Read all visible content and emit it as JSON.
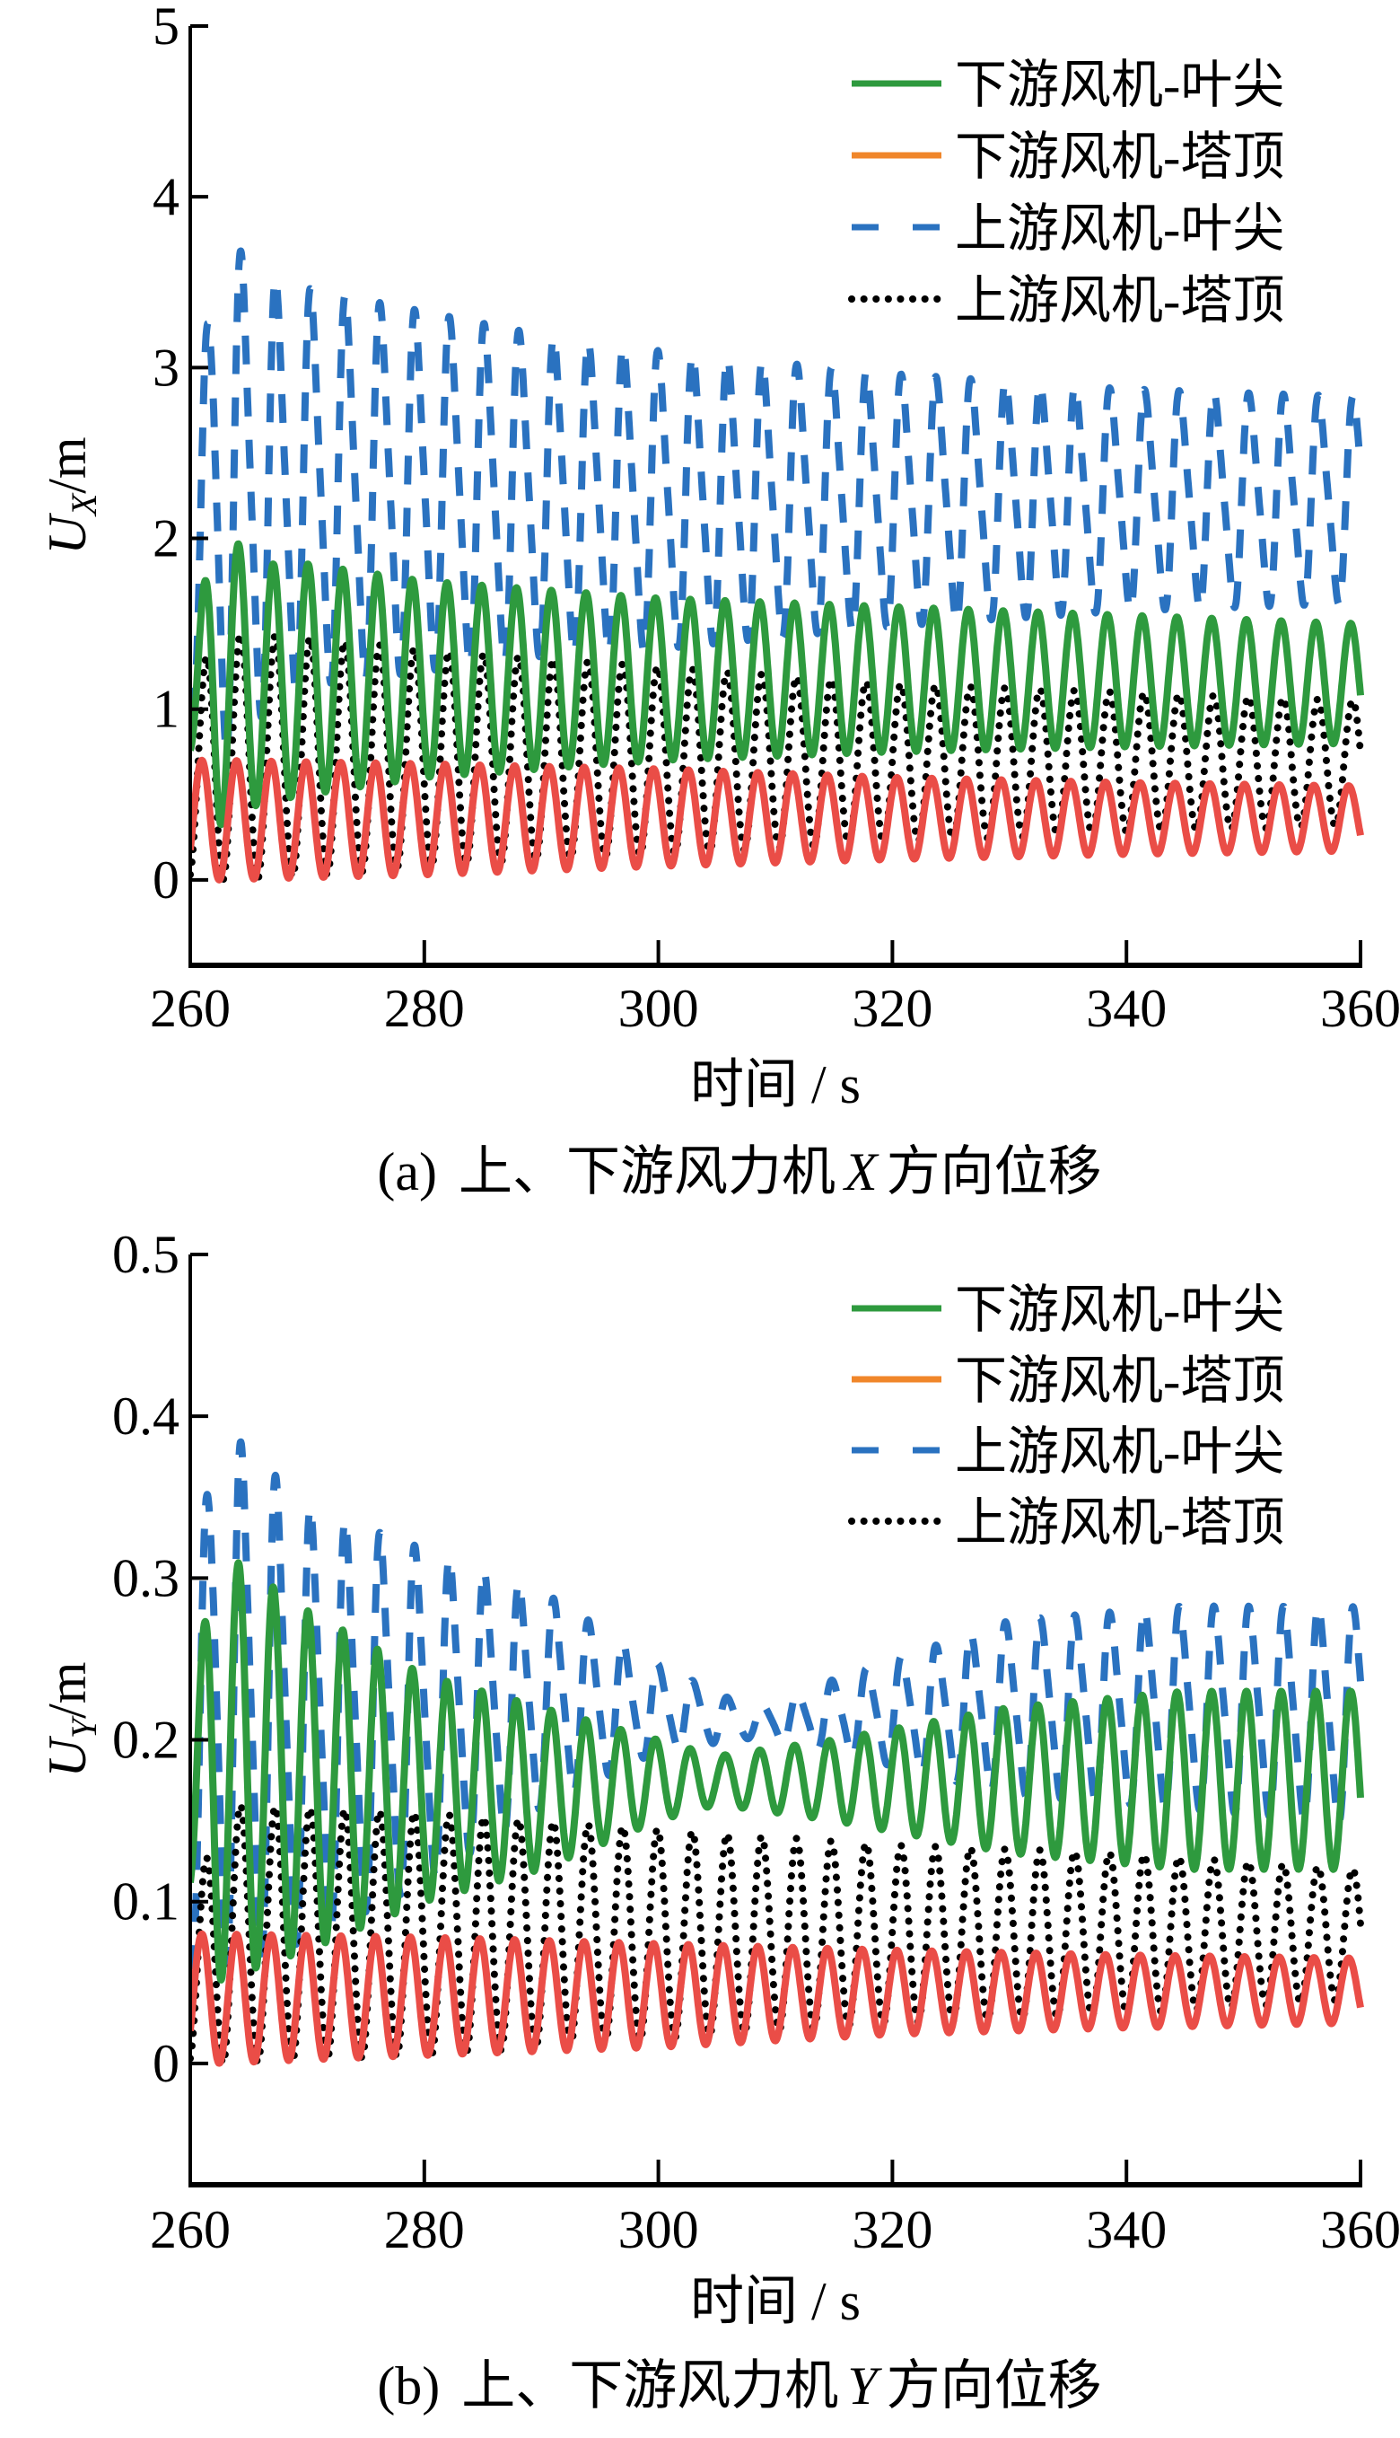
{
  "chart_data": [
    {
      "type": "line",
      "panel": "a",
      "caption": {
        "label": "(a)",
        "text": "上、下游风力机",
        "axis": "X",
        "suffix": "方向位移"
      },
      "xlabel": "时间 / s",
      "ylabel": {
        "symbol": "U",
        "subscript": "X",
        "unit": "/m"
      },
      "xlim": [
        260,
        360
      ],
      "ylim": [
        -0.5,
        5
      ],
      "xticks": [
        260,
        280,
        300,
        320,
        340,
        360
      ],
      "xtick_labels": [
        "260",
        "280",
        "300",
        "320",
        "340",
        "360"
      ],
      "yticks": [
        0,
        1,
        2,
        3,
        4,
        5
      ],
      "ytick_labels": [
        "0",
        "1",
        "2",
        "3",
        "4",
        "5"
      ],
      "grid": false,
      "legend_position": "top-right",
      "period": 2.97,
      "series": [
        {
          "name": "上游风机-叶尖",
          "color": "#2a72c0",
          "style": "dashed",
          "envelope": {
            "t": [
              260,
              262,
              266,
              270,
              280,
              290,
              300,
              320,
              340,
              360
            ],
            "max": [
              1.8,
              4.05,
              3.7,
              3.6,
              3.45,
              3.3,
              3.2,
              3.05,
              2.95,
              2.9
            ],
            "min": [
              1.0,
              0.5,
              0.8,
              1.0,
              1.1,
              1.2,
              1.25,
              1.4,
              1.5,
              1.55
            ]
          }
        },
        {
          "name": "上游风机-塔顶",
          "color": "#000000",
          "style": "dotted",
          "envelope": {
            "t": [
              260,
              262,
              270,
              280,
              300,
              320,
              340,
              360
            ],
            "max": [
              1.0,
              1.45,
              1.42,
              1.35,
              1.25,
              1.15,
              1.1,
              1.05
            ],
            "min": [
              0.0,
              0.0,
              0.02,
              0.08,
              0.15,
              0.22,
              0.28,
              0.32
            ]
          }
        },
        {
          "name": "下游风机-叶尖",
          "color": "#2e9a3e",
          "style": "solid",
          "envelope": {
            "t": [
              260,
              262,
              266,
              270,
              280,
              290,
              300,
              320,
              340,
              360
            ],
            "max": [
              1.2,
              2.1,
              1.85,
              1.85,
              1.75,
              1.7,
              1.65,
              1.6,
              1.55,
              1.5
            ],
            "min": [
              0.7,
              0.3,
              0.45,
              0.5,
              0.6,
              0.65,
              0.7,
              0.75,
              0.78,
              0.8
            ]
          }
        },
        {
          "name": "下游风机-塔顶",
          "color": "#ea4d47",
          "legend_color": "#f0862a",
          "style": "solid",
          "envelope": {
            "t": [
              260,
              262,
              280,
              300,
              320,
              340,
              360
            ],
            "max": [
              0.7,
              0.7,
              0.68,
              0.65,
              0.6,
              0.57,
              0.55
            ],
            "min": [
              0.0,
              0.0,
              0.03,
              0.08,
              0.12,
              0.15,
              0.17
            ]
          }
        }
      ],
      "legend": [
        {
          "label": "下游风机-叶尖",
          "color": "#2e9a3e",
          "style": "solid"
        },
        {
          "label": "下游风机-塔顶",
          "color": "#f0862a",
          "style": "solid"
        },
        {
          "label": "上游风机-叶尖",
          "color": "#2a72c0",
          "style": "dashed"
        },
        {
          "label": "上游风机-塔顶",
          "color": "#000000",
          "style": "dotted"
        }
      ]
    },
    {
      "type": "line",
      "panel": "b",
      "caption": {
        "label": "(b)",
        "text": "上、下游风力机",
        "axis": "Y",
        "suffix": "方向位移"
      },
      "xlabel": "时间 / s",
      "ylabel": {
        "symbol": "U",
        "subscript": "Y",
        "unit": "/m"
      },
      "xlim": [
        260,
        360
      ],
      "ylim": [
        -0.075,
        0.5
      ],
      "xticks": [
        260,
        280,
        300,
        320,
        340,
        360
      ],
      "xtick_labels": [
        "260",
        "280",
        "300",
        "320",
        "340",
        "360"
      ],
      "yticks": [
        0,
        0.1,
        0.2,
        0.3,
        0.4,
        0.5
      ],
      "ytick_labels": [
        "0",
        "0.1",
        "0.2",
        "0.3",
        "0.4",
        "0.5"
      ],
      "grid": false,
      "legend_position": "top-right",
      "period": 2.97,
      "series": [
        {
          "name": "上游风机-叶尖",
          "color": "#2a72c0",
          "style": "dashed",
          "envelope": {
            "t": [
              260,
              262,
              270,
              280,
              290,
              300,
              308,
              315,
              330,
              345,
              360
            ],
            "max": [
              0.25,
              0.42,
              0.36,
              0.33,
              0.3,
              0.25,
              0.22,
              0.24,
              0.28,
              0.29,
              0.29
            ],
            "min": [
              0.05,
              0.04,
              0.06,
              0.1,
              0.15,
              0.19,
              0.2,
              0.19,
              0.16,
              0.15,
              0.14
            ]
          }
        },
        {
          "name": "上游风机-塔顶",
          "color": "#000000",
          "style": "dotted",
          "envelope": {
            "t": [
              260,
              263,
              280,
              300,
              320,
              340,
              360
            ],
            "max": [
              0.1,
              0.16,
              0.155,
              0.145,
              0.135,
              0.13,
              0.12
            ],
            "min": [
              0.0,
              0.0,
              0.005,
              0.015,
              0.025,
              0.03,
              0.04
            ]
          }
        },
        {
          "name": "下游风机-叶尖",
          "color": "#2e9a3e",
          "style": "solid",
          "envelope": {
            "t": [
              260,
              262,
              270,
              280,
              290,
              300,
              305,
              315,
              330,
              345,
              360
            ],
            "max": [
              0.2,
              0.32,
              0.28,
              0.24,
              0.22,
              0.2,
              0.19,
              0.2,
              0.22,
              0.23,
              0.23
            ],
            "min": [
              0.1,
              0.05,
              0.07,
              0.1,
              0.12,
              0.15,
              0.16,
              0.15,
              0.13,
              0.12,
              0.12
            ]
          }
        },
        {
          "name": "下游风机-塔顶",
          "color": "#ea4d47",
          "legend_color": "#f0862a",
          "style": "solid",
          "envelope": {
            "t": [
              260,
              262,
              280,
              300,
              320,
              340,
              360
            ],
            "max": [
              0.08,
              0.08,
              0.078,
              0.074,
              0.07,
              0.067,
              0.065
            ],
            "min": [
              0.0,
              0.0,
              0.005,
              0.01,
              0.018,
              0.022,
              0.025
            ]
          }
        }
      ],
      "legend": [
        {
          "label": "下游风机-叶尖",
          "color": "#2e9a3e",
          "style": "solid"
        },
        {
          "label": "下游风机-塔顶",
          "color": "#f0862a",
          "style": "solid"
        },
        {
          "label": "上游风机-叶尖",
          "color": "#2a72c0",
          "style": "dashed"
        },
        {
          "label": "上游风机-塔顶",
          "color": "#000000",
          "style": "dotted"
        }
      ]
    }
  ]
}
